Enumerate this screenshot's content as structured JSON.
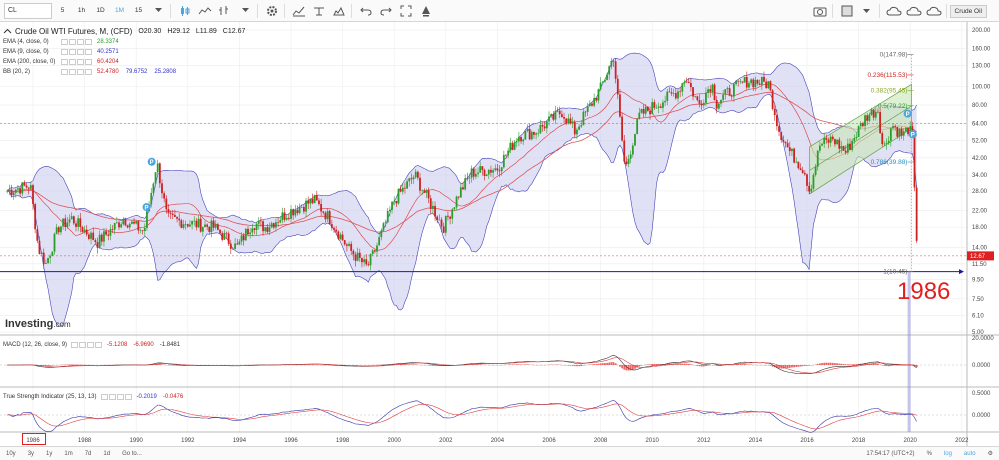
{
  "toolbar": {
    "symbol": "CL",
    "intervals": [
      "5",
      "1h",
      "1D",
      "1M",
      "15"
    ],
    "active_interval": "1M",
    "right_label": "Crude Oil"
  },
  "legend": {
    "title": "Crude Oil WTI Futures, M, (CFD)",
    "ohlc": {
      "open": "O20.30",
      "high": "H29.12",
      "low": "L11.89",
      "close": "C12.67"
    },
    "indicators": [
      {
        "name": "EMA (4, close, 0)",
        "values": [
          "28.3374"
        ],
        "colors": [
          "#2a9d2a"
        ]
      },
      {
        "name": "EMA (9, close, 0)",
        "values": [
          "40.2571"
        ],
        "colors": [
          "#3333cc"
        ]
      },
      {
        "name": "EMA (200, close, 0)",
        "values": [
          "60.4204"
        ],
        "colors": [
          "#cc2222"
        ]
      },
      {
        "name": "BB (20, 2)",
        "values": [
          "52.4780",
          "79.6752",
          "25.2808"
        ],
        "colors": [
          "#cc2222",
          "#3333cc",
          "#3333cc"
        ]
      }
    ]
  },
  "macd": {
    "name": "MACD (12, 26, close, 9)",
    "values": [
      "-5.1208",
      "-6.9690",
      "-1.8481"
    ],
    "colors": [
      "#cc2222",
      "#cc2222",
      "#333333"
    ]
  },
  "tsi": {
    "name": "True Strength Indicator (25, 13, 13)",
    "values": [
      "-0.2019",
      "-0.0476"
    ],
    "colors": [
      "#3333cc",
      "#cc2222"
    ]
  },
  "price_axis": {
    "labels": [
      "200.00",
      "160.00",
      "130.00",
      "100.00",
      "80.00",
      "64.00",
      "52.00",
      "42.00",
      "34.00",
      "28.00",
      "22.00",
      "18.00",
      "14.00",
      "11.50",
      "9.50",
      "7.50",
      "6.10",
      "5.00"
    ],
    "current_price": "12.67"
  },
  "macd_axis": {
    "labels": [
      "20.0000",
      "0.0000"
    ]
  },
  "tsi_axis": {
    "labels": [
      "0.5000",
      "0.0000"
    ]
  },
  "fib": {
    "levels": [
      {
        "label": "0(147.98)",
        "color": "#666666"
      },
      {
        "label": "0.236(115.53)",
        "color": "#cc2222"
      },
      {
        "label": "0.382(95.45)",
        "color": "#88aa22"
      },
      {
        "label": "0.5(79.22)",
        "color": "#2a9d2a"
      },
      {
        "label": "0.786(39.88)",
        "color": "#2a8fbf"
      },
      {
        "label": "1(10.45)",
        "color": "#666666"
      }
    ]
  },
  "markers": [
    "P",
    "P",
    "P",
    "P"
  ],
  "annotation": {
    "year": "1986"
  },
  "branding": {
    "name": "Investing",
    "suffix": ".com"
  },
  "x_axis": {
    "labels": [
      "1986",
      "1988",
      "1990",
      "1992",
      "1994",
      "1996",
      "1998",
      "2000",
      "2002",
      "2004",
      "2006",
      "2008",
      "2010",
      "2012",
      "2014",
      "2016",
      "2018",
      "2020",
      "2022"
    ]
  },
  "bottom_bar": {
    "ranges": [
      "10y",
      "3y",
      "1y",
      "1m",
      "7d",
      "1d",
      "Go to..."
    ],
    "time": "17:54:17 (UTC+2)",
    "options": [
      "%",
      "log",
      "auto"
    ]
  },
  "colors": {
    "bb_fill": "#c9c9ee",
    "bb_line": "#4444bb",
    "ema200": "#dd5555",
    "ema_fast": "#dd3333",
    "up_candle": "#2a9d2a",
    "down_candle": "#cc2222",
    "support_line": "#1a1aa0",
    "channel_fill": "#c8e6b8",
    "accent": "#4aa5e0"
  }
}
